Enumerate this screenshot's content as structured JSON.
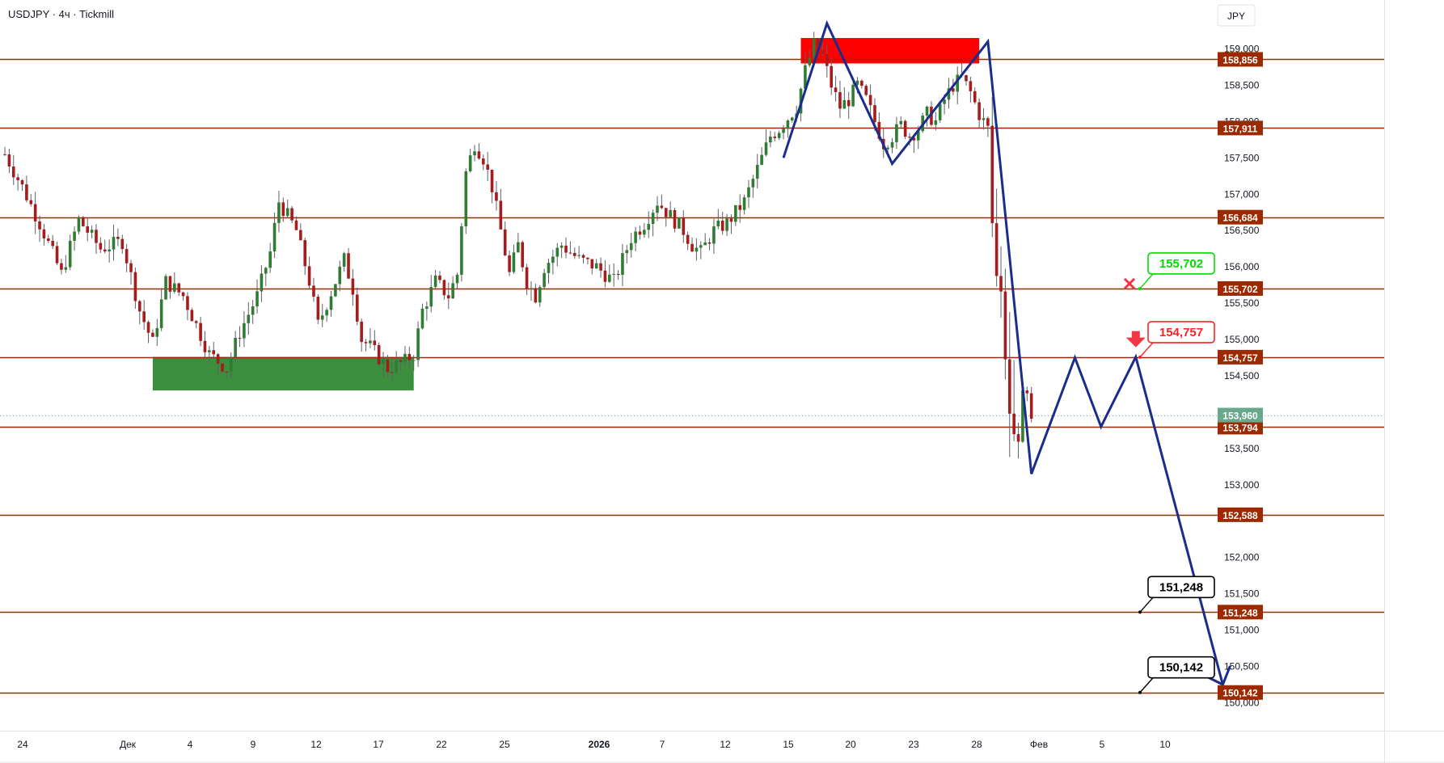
{
  "header": {
    "symbol_title": "USDJPY · 4ч · Tickmill"
  },
  "currency_label": "JPY",
  "chart_data": {
    "type": "candlestick",
    "symbol": "USDJPY",
    "timeframe": "4ч",
    "broker": "Tickmill",
    "y_axis": {
      "unit": "JPY",
      "ylim": [
        149.93,
        159.34
      ],
      "ticks": [
        "150,000",
        "150,500",
        "151,000",
        "151,500",
        "152,000",
        "153,000",
        "153,500",
        "154,500",
        "155,000",
        "155,500",
        "156,000",
        "156,500",
        "157,000",
        "157,500",
        "158,000",
        "158,500",
        "159,000"
      ]
    },
    "x_axis": {
      "ticks": [
        "24",
        "Дек",
        "4",
        "9",
        "12",
        "17",
        "22",
        "25",
        "2026",
        "7",
        "12",
        "15",
        "20",
        "23",
        "28",
        "Фев",
        "5",
        "10"
      ],
      "bold_tick": "2026"
    },
    "levels": [
      {
        "value": 158.856,
        "label": "158,856"
      },
      {
        "value": 157.911,
        "label": "157,911"
      },
      {
        "value": 156.684,
        "label": "156,684"
      },
      {
        "value": 155.702,
        "label": "155,702"
      },
      {
        "value": 154.757,
        "label": "154,757"
      },
      {
        "value": 153.794,
        "label": "153,794"
      },
      {
        "value": 152.588,
        "label": "152,588"
      },
      {
        "value": 151.248,
        "label": "151,248"
      },
      {
        "value": 150.142,
        "label": "150,142"
      }
    ],
    "current_price": {
      "value": 153.96,
      "label": "153,960"
    },
    "zones": [
      {
        "kind": "resistance",
        "color": "#ff0000",
        "price_top": 159.15,
        "price_bottom": 158.8,
        "x_start_bar": 183,
        "x_end_bar": 224
      },
      {
        "kind": "support",
        "color": "#3c8f3c",
        "price_top": 154.76,
        "price_bottom": 154.3,
        "x_start_bar": 34,
        "x_end_bar": 94
      }
    ],
    "callouts": [
      {
        "label": "155,702",
        "value": 155.702,
        "color": "#00dd00",
        "status": "invalidated"
      },
      {
        "label": "154,757",
        "value": 154.757,
        "color": "#ff2222",
        "status": "entry"
      },
      {
        "label": "151,248",
        "value": 151.248,
        "color": "#000000",
        "status": "target"
      },
      {
        "label": "150,142",
        "value": 150.142,
        "color": "#000000",
        "status": "target"
      }
    ],
    "projection_path": [
      {
        "bar": 179,
        "price": 157.5
      },
      {
        "bar": 189,
        "price": 159.35
      },
      {
        "bar": 204,
        "price": 157.42
      },
      {
        "bar": 226,
        "price": 159.1
      },
      {
        "bar": 236,
        "price": 153.15
      },
      {
        "bar": 246,
        "price": 154.75
      },
      {
        "bar": 252,
        "price": 153.8
      },
      {
        "bar": 260,
        "price": 154.76
      },
      {
        "bar": 280,
        "price": 150.25
      }
    ],
    "ohlc_seed": {
      "start_price": 157.55,
      "anchors": [
        [
          0,
          157.55
        ],
        [
          4,
          157.1
        ],
        [
          8,
          156.6
        ],
        [
          13,
          155.9
        ],
        [
          17,
          156.65
        ],
        [
          22,
          156.25
        ],
        [
          27,
          156.35
        ],
        [
          31,
          155.4
        ],
        [
          34,
          154.95
        ],
        [
          37,
          155.8
        ],
        [
          41,
          155.6
        ],
        [
          44,
          155.2
        ],
        [
          47,
          154.8
        ],
        [
          51,
          154.6
        ],
        [
          54,
          155.1
        ],
        [
          58,
          155.6
        ],
        [
          61,
          156.2
        ],
        [
          63,
          156.9
        ],
        [
          67,
          156.5
        ],
        [
          70,
          155.8
        ],
        [
          72,
          155.2
        ],
        [
          76,
          155.8
        ],
        [
          78,
          156.1
        ],
        [
          80,
          155.7
        ],
        [
          82,
          155.0
        ],
        [
          84,
          154.9
        ],
        [
          88,
          154.6
        ],
        [
          92,
          154.7
        ],
        [
          94,
          154.8
        ],
        [
          96,
          155.4
        ],
        [
          99,
          155.8
        ],
        [
          102,
          155.6
        ],
        [
          104,
          155.9
        ],
        [
          106,
          157.3
        ],
        [
          108,
          157.7
        ],
        [
          110,
          157.5
        ],
        [
          112,
          157.1
        ],
        [
          114,
          156.5
        ],
        [
          116,
          155.9
        ],
        [
          118,
          156.3
        ],
        [
          120,
          155.8
        ],
        [
          122,
          155.6
        ],
        [
          124,
          156.0
        ],
        [
          128,
          156.3
        ],
        [
          132,
          156.1
        ],
        [
          136,
          156.0
        ],
        [
          140,
          155.8
        ],
        [
          144,
          156.4
        ],
        [
          147,
          156.6
        ],
        [
          150,
          156.9
        ],
        [
          153,
          156.7
        ],
        [
          156,
          156.5
        ],
        [
          158,
          156.3
        ],
        [
          160,
          156.2
        ],
        [
          163,
          156.5
        ],
        [
          166,
          156.6
        ],
        [
          170,
          156.9
        ],
        [
          174,
          157.5
        ],
        [
          176,
          157.8
        ],
        [
          178,
          157.9
        ],
        [
          182,
          158.2
        ],
        [
          184,
          158.7
        ],
        [
          186,
          159.05
        ],
        [
          188,
          158.9
        ],
        [
          190,
          158.5
        ],
        [
          192,
          158.2
        ],
        [
          194,
          158.3
        ],
        [
          196,
          158.5
        ],
        [
          198,
          158.3
        ],
        [
          200,
          158.0
        ],
        [
          202,
          157.7
        ],
        [
          204,
          157.8
        ],
        [
          206,
          157.95
        ],
        [
          208,
          157.8
        ],
        [
          210,
          157.9
        ],
        [
          212,
          158.1
        ],
        [
          214,
          158.0
        ],
        [
          216,
          158.3
        ],
        [
          218,
          158.5
        ],
        [
          220,
          158.6
        ],
        [
          222,
          158.4
        ],
        [
          224,
          158.1
        ],
        [
          226,
          157.9
        ],
        [
          227,
          156.6
        ],
        [
          228,
          155.8
        ],
        [
          229,
          155.6
        ],
        [
          230,
          154.7
        ],
        [
          231,
          154.0
        ],
        [
          232,
          153.8
        ],
        [
          233,
          153.7
        ],
        [
          234,
          154.2
        ],
        [
          235,
          154.3
        ],
        [
          236,
          153.9
        ]
      ]
    }
  }
}
